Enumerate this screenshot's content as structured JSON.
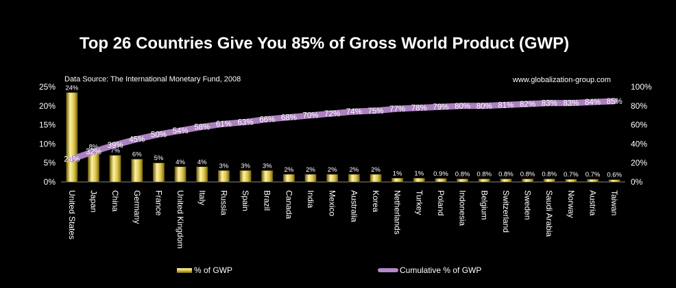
{
  "title": "Top 26 Countries Give You 85% of Gross World Product (GWP)",
  "source": "Data Source:  The International  Monetary  Fund, 2008",
  "site": "www.globalization-group.com",
  "colors": {
    "background": "#000000",
    "bar": "#d8c24a",
    "line": "#b488c9"
  },
  "chart_data": {
    "type": "bar",
    "categories": [
      "United States",
      "Japan",
      "China",
      "Germany",
      "France",
      "United Kingdom",
      "Italy",
      "Russia",
      "Spain",
      "Brazil",
      "Canada",
      "India",
      "Mexico",
      "Australia",
      "Korea",
      "Netherlands",
      "Turkey",
      "Poland",
      "Indonesia",
      "Belgium",
      "Switzerland",
      "Sweden",
      "Saudi Arabia",
      "Norway",
      "Austria",
      "Taiwan"
    ],
    "series": [
      {
        "name": "% of GWP",
        "type": "bar",
        "axis": "left",
        "values": [
          23.5,
          8,
          7,
          6,
          5,
          4,
          4,
          3,
          3,
          3,
          2,
          2,
          2,
          2,
          2,
          1,
          1,
          0.9,
          0.8,
          0.8,
          0.8,
          0.8,
          0.8,
          0.7,
          0.7,
          0.6
        ],
        "labels": [
          "24%",
          "8%",
          "7%",
          "6%",
          "5%",
          "4%",
          "4%",
          "3%",
          "3%",
          "3%",
          "2%",
          "2%",
          "2%",
          "2%",
          "2%",
          "1%",
          "1%",
          "0.9%",
          "0.8%",
          "0.8%",
          "0.8%",
          "0.8%",
          "0.8%",
          "0.7%",
          "0.7%",
          "0.6%"
        ]
      },
      {
        "name": "Cumulative % of GWP",
        "type": "line",
        "axis": "right",
        "values": [
          24,
          32,
          39,
          45,
          50,
          54,
          58,
          61,
          63,
          66,
          68,
          70,
          72,
          74,
          75,
          77,
          78,
          79,
          80,
          80,
          81,
          82,
          83,
          83,
          84,
          85
        ],
        "labels": [
          "24%",
          "32%",
          "39%",
          "45%",
          "50%",
          "54%",
          "58%",
          "61%",
          "63%",
          "66%",
          "68%",
          "70%",
          "72%",
          "74%",
          "75%",
          "77%",
          "78%",
          "79%",
          "80%",
          "80%",
          "81%",
          "82%",
          "83%",
          "83%",
          "84%",
          "85%"
        ]
      }
    ],
    "y_left": {
      "ylim": [
        0,
        25
      ],
      "ticks": [
        "0%",
        "5%",
        "10%",
        "15%",
        "20%",
        "25%"
      ]
    },
    "y_right": {
      "ylim": [
        0,
        100
      ],
      "ticks": [
        "0%",
        "20%",
        "40%",
        "60%",
        "80%",
        "100%"
      ]
    },
    "grid": false,
    "legend": "bottom"
  }
}
